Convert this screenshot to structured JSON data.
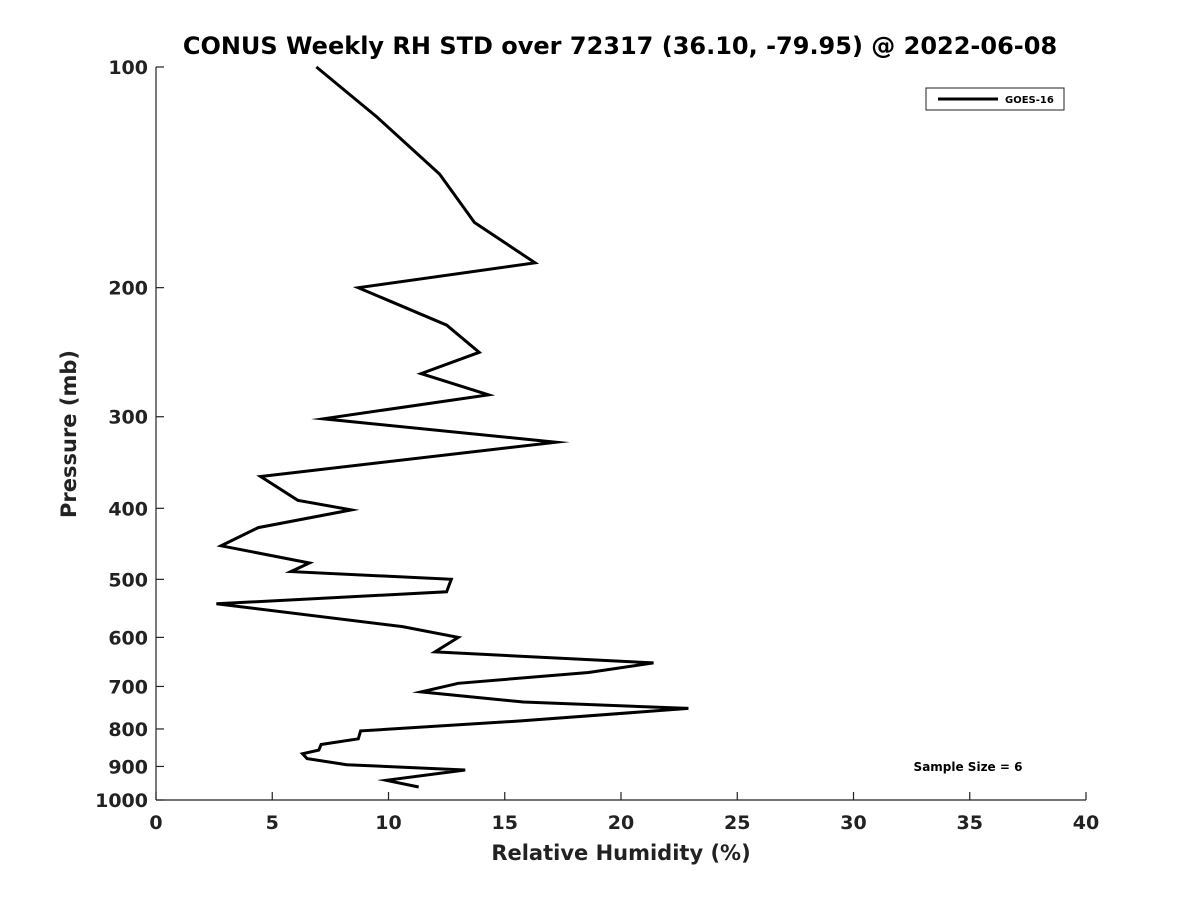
{
  "chart_data": {
    "type": "line",
    "title": "CONUS Weekly RH STD over 72317 (36.10, -79.95) @ 2022-06-08",
    "xlabel": "Relative Humidity (%)",
    "ylabel": "Pressure (mb)",
    "xlim": [
      0,
      40
    ],
    "ylim": [
      100,
      1000
    ],
    "y_scale": "log",
    "y_reversed": true,
    "grid": false,
    "legend_position": "top-right",
    "x_ticks": [
      0,
      5,
      10,
      15,
      20,
      25,
      30,
      35,
      40
    ],
    "y_ticks": [
      100,
      200,
      300,
      400,
      500,
      600,
      700,
      800,
      900,
      1000
    ],
    "series": [
      {
        "name": "GOES-16",
        "color": "#000000",
        "x": [
          6.9,
          9.5,
          12.2,
          13.7,
          16.3,
          8.7,
          12.5,
          13.9,
          11.4,
          14.3,
          7.2,
          17.2,
          4.5,
          6.1,
          8.4,
          4.4,
          2.8,
          6.6,
          5.8,
          12.7,
          12.5,
          2.6,
          10.6,
          13.0,
          12.0,
          21.4,
          18.6,
          13.0,
          11.4,
          15.8,
          22.9,
          15.7,
          8.8,
          8.7,
          7.1,
          7.0,
          6.3,
          6.5,
          8.2,
          13.3,
          9.9,
          11.3
        ],
        "y": [
          100,
          117,
          140,
          163,
          185,
          200,
          225,
          245,
          262,
          280,
          302,
          325,
          362,
          390,
          402,
          425,
          450,
          475,
          488,
          500,
          520,
          540,
          580,
          600,
          628,
          650,
          670,
          693,
          712,
          735,
          750,
          780,
          805,
          825,
          840,
          855,
          865,
          878,
          895,
          910,
          940,
          960
        ]
      }
    ],
    "annotations": [
      "Sample Size = 6"
    ]
  }
}
